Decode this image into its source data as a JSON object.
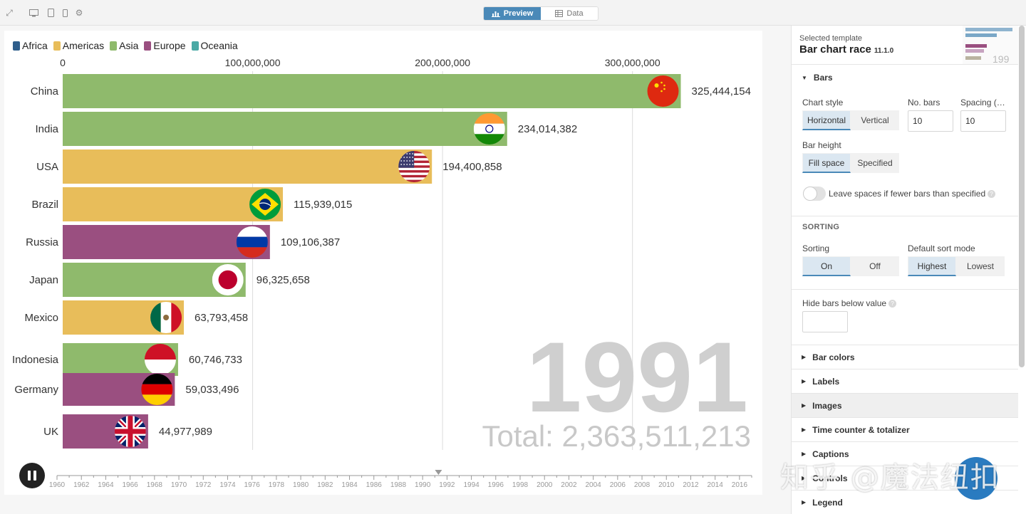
{
  "toolbar": {
    "icons": [
      "expand-icon",
      "desktop-icon",
      "tablet-icon",
      "mobile-icon",
      "gear-icon"
    ],
    "tabs": [
      {
        "label": "Preview",
        "icon": "bar-chart-icon",
        "active": true
      },
      {
        "label": "Data",
        "icon": "table-icon",
        "active": false
      }
    ]
  },
  "legend": [
    {
      "label": "Africa",
      "color": "#2f5e8b"
    },
    {
      "label": "Americas",
      "color": "#e8bd5a"
    },
    {
      "label": "Asia",
      "color": "#8fba6c"
    },
    {
      "label": "Europe",
      "color": "#9a4f80"
    },
    {
      "label": "Oceania",
      "color": "#4aa9a5"
    }
  ],
  "chart_data": {
    "type": "bar",
    "orientation": "horizontal",
    "x_ticks": [
      "0",
      "100,000,000",
      "200,000,000",
      "300,000,000"
    ],
    "x_tick_values": [
      0,
      100000000,
      200000000,
      300000000
    ],
    "xlim": [
      0,
      326000000
    ],
    "bars": [
      {
        "label": "China",
        "value": 325444154,
        "value_label": "325,444,154",
        "region": "Asia",
        "flag": "china-flag-icon"
      },
      {
        "label": "India",
        "value": 234014382,
        "value_label": "234,014,382",
        "region": "Asia",
        "flag": "india-flag-icon"
      },
      {
        "label": "USA",
        "value": 194400858,
        "value_label": "194,400,858",
        "region": "Americas",
        "flag": "usa-flag-icon"
      },
      {
        "label": "Brazil",
        "value": 115939015,
        "value_label": "115,939,015",
        "region": "Americas",
        "flag": "brazil-flag-icon"
      },
      {
        "label": "Russia",
        "value": 109106387,
        "value_label": "109,106,387",
        "region": "Europe",
        "flag": "russia-flag-icon"
      },
      {
        "label": "Japan",
        "value": 96325658,
        "value_label": "96,325,658",
        "region": "Asia",
        "flag": "japan-flag-icon"
      },
      {
        "label": "Mexico",
        "value": 63793458,
        "value_label": "63,793,458",
        "region": "Americas",
        "flag": "mexico-flag-icon"
      },
      {
        "label": "Indonesia",
        "value": 60746733,
        "value_label": "60,746,733",
        "region": "Asia",
        "flag": "indonesia-flag-icon"
      },
      {
        "label": "Germany",
        "value": 59033496,
        "value_label": "59,033,496",
        "region": "Europe",
        "flag": "germany-flag-icon"
      },
      {
        "label": "UK",
        "value": 44977989,
        "value_label": "44,977,989",
        "region": "Europe",
        "flag": "uk-flag-icon"
      }
    ],
    "year": "1991",
    "total_label": "Total: 2,363,511,213",
    "timeline": {
      "labels": [
        "1960",
        "1962",
        "1964",
        "1966",
        "1968",
        "1970",
        "1972",
        "1974",
        "1976",
        "1978",
        "1980",
        "1982",
        "1984",
        "1986",
        "1988",
        "1990",
        "1992",
        "1994",
        "1996",
        "1998",
        "2000",
        "2002",
        "2004",
        "2006",
        "2008",
        "2010",
        "2012",
        "2014",
        "2016"
      ],
      "start": 1960,
      "end": 2017,
      "current": 1991.3
    }
  },
  "panel": {
    "template_label": "Selected template",
    "template_name": "Bar chart race",
    "template_version": "11.1.0",
    "thumb_year": "199",
    "bars_section": "Bars",
    "chart_style_label": "Chart style",
    "chart_style_options": [
      "Horizontal",
      "Vertical"
    ],
    "no_bars_label": "No. bars",
    "no_bars_value": "10",
    "spacing_label": "Spacing (…",
    "spacing_value": "10",
    "bar_height_label": "Bar height",
    "bar_height_options": [
      "Fill space",
      "Specified"
    ],
    "leave_spaces_label": "Leave spaces if fewer bars than specified",
    "sorting_header": "SORTING",
    "sorting_label": "Sorting",
    "sorting_options": [
      "On",
      "Off"
    ],
    "sort_mode_label": "Default sort mode",
    "sort_mode_options": [
      "Highest",
      "Lowest"
    ],
    "hide_below_label": "Hide bars below value",
    "hide_below_value": "",
    "sections": [
      "Bar colors",
      "Labels",
      "Images",
      "Time counter & totalizer",
      "Captions",
      "Controls",
      "Legend"
    ]
  },
  "watermark": "知乎 @魔法纽扣"
}
